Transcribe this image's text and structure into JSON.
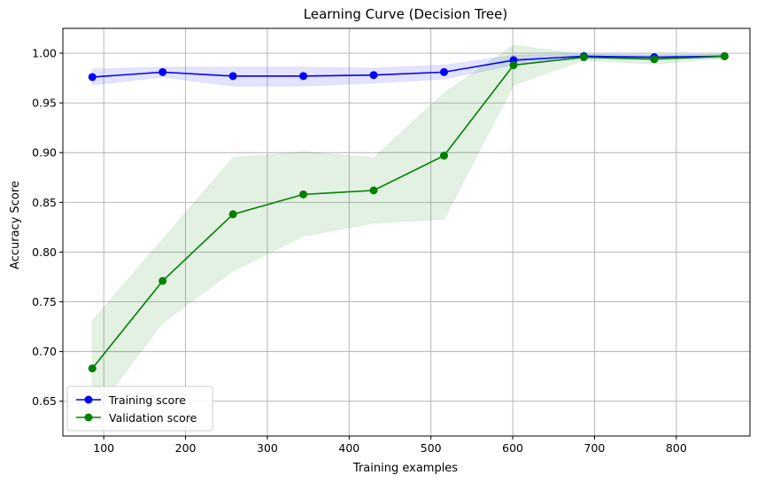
{
  "chart_data": {
    "type": "line",
    "title": "Learning Curve (Decision Tree)",
    "xlabel": "Training examples",
    "ylabel": "Accuracy Score",
    "xlim": [
      50,
      890
    ],
    "ylim": [
      0.615,
      1.025
    ],
    "x_ticks": [
      100,
      200,
      300,
      400,
      500,
      600,
      700,
      800
    ],
    "y_ticks": [
      0.65,
      0.7,
      0.75,
      0.8,
      0.85,
      0.9,
      0.95,
      1.0
    ],
    "x_tick_labels": [
      "100",
      "200",
      "300",
      "400",
      "500",
      "600",
      "700",
      "800"
    ],
    "y_tick_labels": [
      "0.65",
      "0.70",
      "0.75",
      "0.80",
      "0.85",
      "0.90",
      "0.95",
      "1.00"
    ],
    "grid": true,
    "legend_position": "lower-left",
    "x": [
      86,
      172,
      258,
      344,
      430,
      516,
      601,
      687,
      773,
      859
    ],
    "series": [
      {
        "name": "Training score",
        "color": "#0000ff",
        "values": [
          0.976,
          0.981,
          0.977,
          0.977,
          0.978,
          0.981,
          0.993,
          0.997,
          0.996,
          0.997
        ],
        "band_lower": [
          0.968,
          0.976,
          0.967,
          0.967,
          0.97,
          0.974,
          0.988,
          0.995,
          0.994,
          0.995
        ],
        "band_upper": [
          0.984,
          0.986,
          0.986,
          0.986,
          0.985,
          0.988,
          0.998,
          0.999,
          0.998,
          0.999
        ]
      },
      {
        "name": "Validation score",
        "color": "#008000",
        "values": [
          0.683,
          0.771,
          0.838,
          0.858,
          0.862,
          0.897,
          0.988,
          0.996,
          0.994,
          0.997
        ],
        "band_lower": [
          0.635,
          0.729,
          0.781,
          0.816,
          0.829,
          0.833,
          0.968,
          0.993,
          0.989,
          0.995
        ],
        "band_upper": [
          0.731,
          0.813,
          0.895,
          0.901,
          0.895,
          0.96,
          1.008,
          0.999,
          0.999,
          0.999
        ]
      }
    ]
  }
}
